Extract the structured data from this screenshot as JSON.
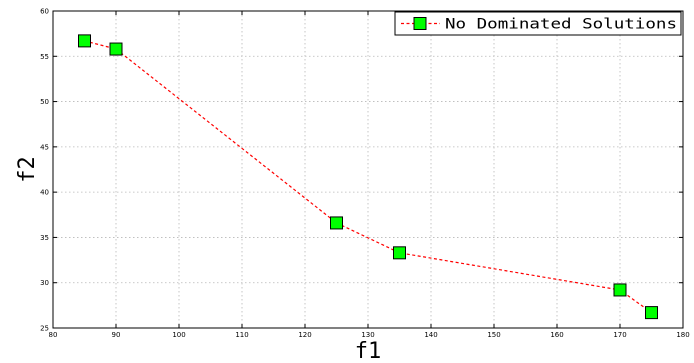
{
  "chart_data": {
    "type": "line",
    "title": "",
    "xlabel": "f1",
    "ylabel": "f2",
    "xlim": [
      80,
      180
    ],
    "ylim": [
      25,
      60
    ],
    "xticks": [
      80,
      90,
      100,
      110,
      120,
      130,
      140,
      150,
      160,
      170,
      180
    ],
    "yticks": [
      25,
      30,
      35,
      40,
      45,
      50,
      55,
      60
    ],
    "grid": true,
    "legend_position": "top-right",
    "series": [
      {
        "name": "No Dominated Solutions",
        "color": "#ff0000",
        "marker_color": "#00ff00",
        "marker": "square",
        "line_style": "dashed",
        "x": [
          85,
          90,
          125,
          135,
          170,
          175
        ],
        "y": [
          56.7,
          55.8,
          36.6,
          33.3,
          29.2,
          26.7
        ]
      }
    ]
  }
}
